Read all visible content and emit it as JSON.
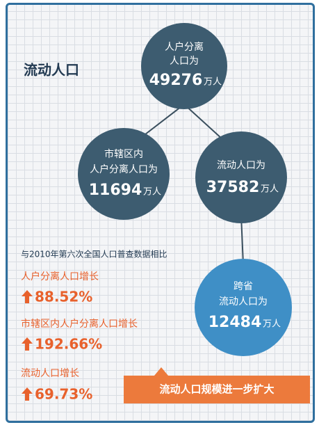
{
  "title": "流动人口",
  "nodes": [
    {
      "lines": [
        "人户分离",
        "人口为"
      ],
      "number": "49276",
      "unit": "万人"
    },
    {
      "lines": [
        "市辖区内",
        "人户分离人口为"
      ],
      "number": "11694",
      "unit": "万人"
    },
    {
      "lines": [
        "流动人口为"
      ],
      "number": "37582",
      "unit": "万人"
    },
    {
      "lines": [
        "跨省",
        "流动人口为"
      ],
      "number": "12484",
      "unit": "万人"
    }
  ],
  "comparison": {
    "heading": "与2010年第六次全国人口普查数据相比",
    "items": [
      {
        "label": "人户分离人口增长",
        "value": "88.52%"
      },
      {
        "label": "市辖区内人户分离人口增长",
        "value": "192.66%"
      },
      {
        "label": "流动人口增长",
        "value": "69.73%"
      }
    ]
  },
  "banner": "流动人口规模进一步扩大"
}
